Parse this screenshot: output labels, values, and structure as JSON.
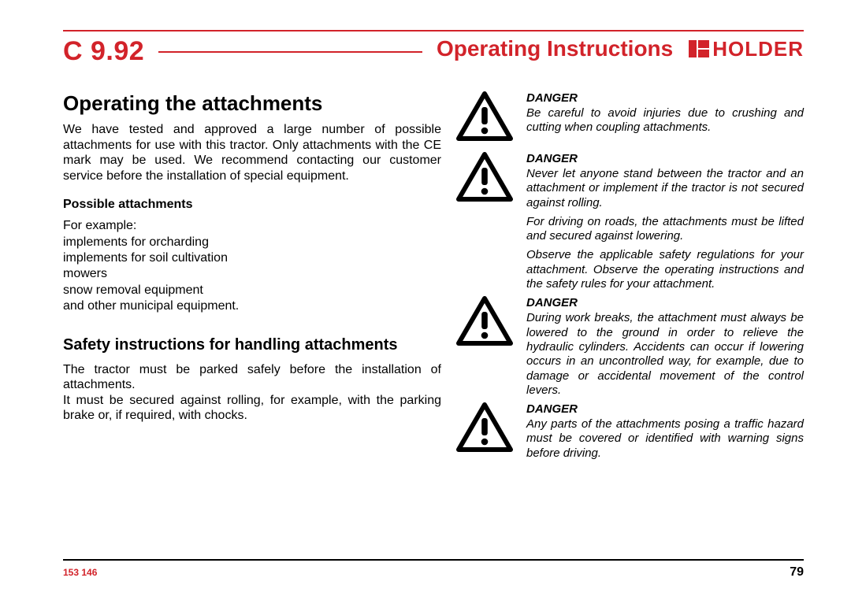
{
  "header": {
    "model": "C 9.92",
    "title": "Operating Instructions",
    "logo_text": "HOLDER",
    "accent_color": "#d2232a"
  },
  "left": {
    "heading": "Operating the attachments",
    "intro": "We have tested and approved a large number of possible attachments for use with this tractor. Only attachments with the CE mark may be used. We recommend contacting our customer service before the installation of special equipment.",
    "possible_heading": "Possible attachments",
    "possible_lead": "For example:",
    "possible_items": [
      "implements for orcharding",
      "implements for soil cultivation",
      "mowers",
      "snow removal equipment",
      "and other municipal equipment."
    ],
    "safety_heading": "Safety instructions for handling attachments",
    "safety_p1": "The tractor must be parked safely before the installation of attachments.",
    "safety_p2": "It must be secured against rolling, for example, with the parking brake or, if required, with chocks."
  },
  "right": {
    "danger_label": "DANGER",
    "items": [
      {
        "icon": true,
        "text": "Be careful to avoid injuries due to crushing and cutting when coupling attachments."
      },
      {
        "icon": true,
        "text": "Never let anyone stand between the tractor and an attachment or implement if the tractor is not secured against rolling."
      },
      {
        "icon": false,
        "text": "For driving on roads, the attachments must be lifted and secured against lowering."
      },
      {
        "icon": false,
        "text": "Observe the applicable safety regulations for your attachment. Observe the operating instructions and the safety rules for your attachment."
      },
      {
        "icon": true,
        "text": "During work breaks, the attachment must always be lowered to the ground in order to relieve the hydraulic cylinders. Accidents can occur if lowering occurs in an uncontrolled way, for example, due to damage or accidental movement of the control levers."
      },
      {
        "icon": true,
        "text": "Any parts of the attachments posing a traffic hazard must be covered or identified with warning signs before driving."
      }
    ]
  },
  "footer": {
    "code": "153 146",
    "page": "79"
  }
}
